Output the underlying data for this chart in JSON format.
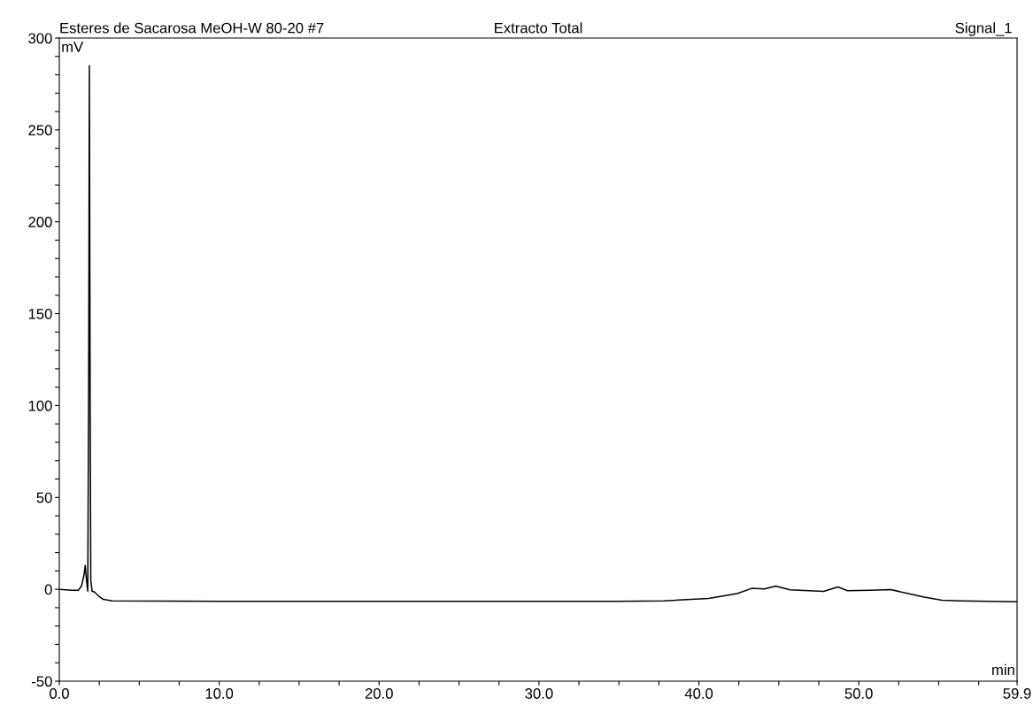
{
  "chart_data": {
    "type": "line",
    "title": "Esteres de Sacarosa MeOH-W 80-20 #7",
    "subtitle": "Extracto Total",
    "annotations": [
      "Signal_1"
    ],
    "xlabel": "min",
    "ylabel": "mV",
    "x": [
      0,
      0.8,
      1.2,
      1.4,
      1.55,
      1.62,
      1.7,
      1.78,
      1.84,
      1.88,
      1.93,
      1.97,
      2.05,
      2.2,
      2.5,
      2.75,
      3.3,
      10,
      20,
      30,
      35,
      37.8,
      40.6,
      42.4,
      43.3,
      44.1,
      44.8,
      45.7,
      47.8,
      48.3,
      48.7,
      49.3,
      50.7,
      52.0,
      53.1,
      54.1,
      55.2,
      56.3,
      59.9
    ],
    "series": [
      {
        "color": "#000000",
        "values": [
          0,
          -0.5,
          -0.5,
          2,
          8,
          13,
          5,
          -1,
          120,
          285,
          100,
          5,
          -1,
          -1.5,
          -4,
          -5.5,
          -6.3,
          -6.5,
          -6.6,
          -6.6,
          -6.5,
          -6.3,
          -5.0,
          -2.3,
          0.5,
          0.2,
          1.8,
          -0.3,
          -1.1,
          0.2,
          1.3,
          -0.8,
          -0.5,
          -0.2,
          -2.3,
          -4.3,
          -6.0,
          -6.3,
          -6.8
        ]
      }
    ],
    "xlim": [
      0,
      59.9
    ],
    "ylim": [
      -50,
      300
    ],
    "xticks": [
      {
        "value": 0,
        "label": "0.0"
      },
      {
        "value": 2.5,
        "label": null
      },
      {
        "value": 5,
        "label": null
      },
      {
        "value": 7.5,
        "label": null
      },
      {
        "value": 10,
        "label": "10.0"
      },
      {
        "value": 12.5,
        "label": null
      },
      {
        "value": 15,
        "label": null
      },
      {
        "value": 17.5,
        "label": null
      },
      {
        "value": 20,
        "label": "20.0"
      },
      {
        "value": 22.5,
        "label": null
      },
      {
        "value": 25,
        "label": null
      },
      {
        "value": 27.5,
        "label": null
      },
      {
        "value": 30,
        "label": "30.0"
      },
      {
        "value": 32.5,
        "label": null
      },
      {
        "value": 35,
        "label": null
      },
      {
        "value": 37.5,
        "label": null
      },
      {
        "value": 40,
        "label": "40.0"
      },
      {
        "value": 42.5,
        "label": null
      },
      {
        "value": 45,
        "label": null
      },
      {
        "value": 47.5,
        "label": null
      },
      {
        "value": 50,
        "label": "50.0"
      },
      {
        "value": 52.5,
        "label": null
      },
      {
        "value": 55,
        "label": null
      },
      {
        "value": 57.5,
        "label": null
      },
      {
        "value": 59.9,
        "label": "59.9"
      }
    ],
    "yticks": [
      -50,
      {
        "value": -40,
        "label": null
      },
      {
        "value": -30,
        "label": null
      },
      {
        "value": -20,
        "label": null
      },
      {
        "value": -10,
        "label": null
      },
      0,
      {
        "value": 10,
        "label": null
      },
      {
        "value": 20,
        "label": null
      },
      {
        "value": 30,
        "label": null
      },
      {
        "value": 40,
        "label": null
      },
      50,
      {
        "value": 60,
        "label": null
      },
      {
        "value": 70,
        "label": null
      },
      {
        "value": 80,
        "label": null
      },
      {
        "value": 90,
        "label": null
      },
      100,
      {
        "value": 110,
        "label": null
      },
      {
        "value": 120,
        "label": null
      },
      {
        "value": 130,
        "label": null
      },
      {
        "value": 140,
        "label": null
      },
      150,
      {
        "value": 160,
        "label": null
      },
      {
        "value": 170,
        "label": null
      },
      {
        "value": 180,
        "label": null
      },
      {
        "value": 190,
        "label": null
      },
      200,
      {
        "value": 210,
        "label": null
      },
      {
        "value": 220,
        "label": null
      },
      {
        "value": 230,
        "label": null
      },
      {
        "value": 240,
        "label": null
      },
      250,
      {
        "value": 260,
        "label": null
      },
      {
        "value": 270,
        "label": null
      },
      {
        "value": 280,
        "label": null
      },
      {
        "value": 290,
        "label": null
      },
      300
    ],
    "grid": false,
    "legend": false,
    "marker": "none",
    "line_style": "solid"
  }
}
